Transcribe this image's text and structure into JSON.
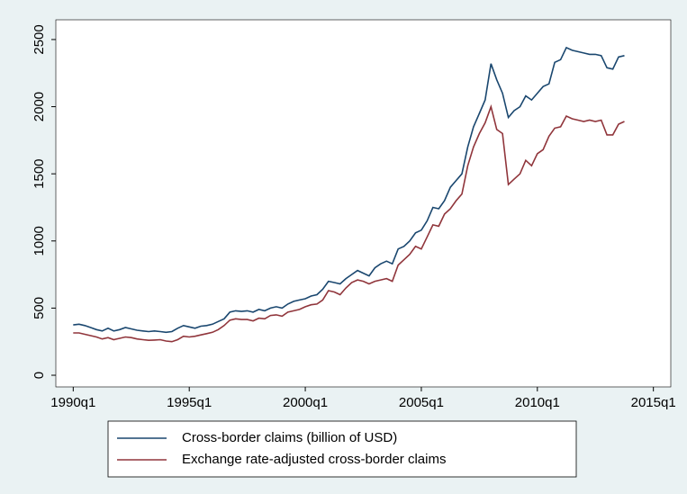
{
  "chart_data": {
    "type": "line",
    "x": [
      120,
      121,
      122,
      123,
      124,
      125,
      126,
      127,
      128,
      129,
      130,
      131,
      132,
      133,
      134,
      135,
      136,
      137,
      138,
      139,
      140,
      141,
      142,
      143,
      144,
      145,
      146,
      147,
      148,
      149,
      150,
      151,
      152,
      153,
      154,
      155,
      156,
      157,
      158,
      159,
      160,
      161,
      162,
      163,
      164,
      165,
      166,
      167,
      168,
      169,
      170,
      171,
      172,
      173,
      174,
      175,
      176,
      177,
      178,
      179,
      180,
      181,
      182,
      183,
      184,
      185,
      186,
      187,
      188,
      189,
      190,
      191,
      192,
      193,
      194,
      195,
      196,
      197,
      198,
      199,
      200,
      201,
      202,
      203,
      204,
      205,
      206,
      207,
      208,
      209,
      210,
      211,
      212,
      213,
      214,
      215
    ],
    "series": [
      {
        "name": "Cross-border claims (billion of USD)",
        "color": "#1a476f",
        "values": [
          375,
          380,
          370,
          355,
          340,
          330,
          350,
          330,
          340,
          355,
          345,
          335,
          330,
          325,
          330,
          325,
          320,
          325,
          350,
          370,
          360,
          350,
          365,
          370,
          380,
          400,
          420,
          470,
          480,
          475,
          480,
          470,
          490,
          480,
          500,
          510,
          500,
          530,
          550,
          560,
          570,
          590,
          600,
          640,
          700,
          690,
          680,
          720,
          750,
          780,
          760,
          740,
          800,
          830,
          850,
          830,
          940,
          960,
          1000,
          1060,
          1080,
          1150,
          1250,
          1240,
          1300,
          1400,
          1450,
          1500,
          1700,
          1850,
          1950,
          2050,
          2320,
          2200,
          2100,
          1920,
          1970,
          2000,
          2080,
          2050,
          2100,
          2150,
          2170,
          2330,
          2350,
          2440,
          2420,
          2410,
          2400,
          2390,
          2390,
          2380,
          2290,
          2280,
          2370,
          2380
        ]
      },
      {
        "name": "Exchange rate-adjusted cross-border claims",
        "color": "#90353b",
        "values": [
          315,
          315,
          305,
          295,
          285,
          270,
          280,
          265,
          275,
          285,
          280,
          270,
          265,
          260,
          262,
          265,
          255,
          250,
          265,
          290,
          285,
          290,
          300,
          310,
          320,
          340,
          370,
          410,
          420,
          415,
          415,
          405,
          425,
          420,
          445,
          450,
          440,
          470,
          480,
          490,
          510,
          525,
          530,
          560,
          630,
          620,
          600,
          650,
          690,
          710,
          700,
          680,
          700,
          710,
          720,
          700,
          820,
          860,
          900,
          960,
          940,
          1030,
          1120,
          1110,
          1200,
          1240,
          1300,
          1350,
          1560,
          1700,
          1800,
          1880,
          2000,
          1830,
          1800,
          1420,
          1460,
          1500,
          1600,
          1560,
          1650,
          1680,
          1780,
          1840,
          1850,
          1930,
          1910,
          1900,
          1890,
          1900,
          1890,
          1900,
          1790,
          1790,
          1870,
          1890
        ]
      }
    ],
    "xlim": [
      117,
      223
    ],
    "xticks": [
      {
        "value": 120,
        "label": "1990q1"
      },
      {
        "value": 140,
        "label": "1995q1"
      },
      {
        "value": 160,
        "label": "2000q1"
      },
      {
        "value": 180,
        "label": "2005q1"
      },
      {
        "value": 200,
        "label": "2010q1"
      },
      {
        "value": 220,
        "label": "2015q1"
      }
    ],
    "ylim": [
      -87,
      2647
    ],
    "yticks": [
      0,
      500,
      1000,
      1500,
      2000,
      2500
    ]
  }
}
